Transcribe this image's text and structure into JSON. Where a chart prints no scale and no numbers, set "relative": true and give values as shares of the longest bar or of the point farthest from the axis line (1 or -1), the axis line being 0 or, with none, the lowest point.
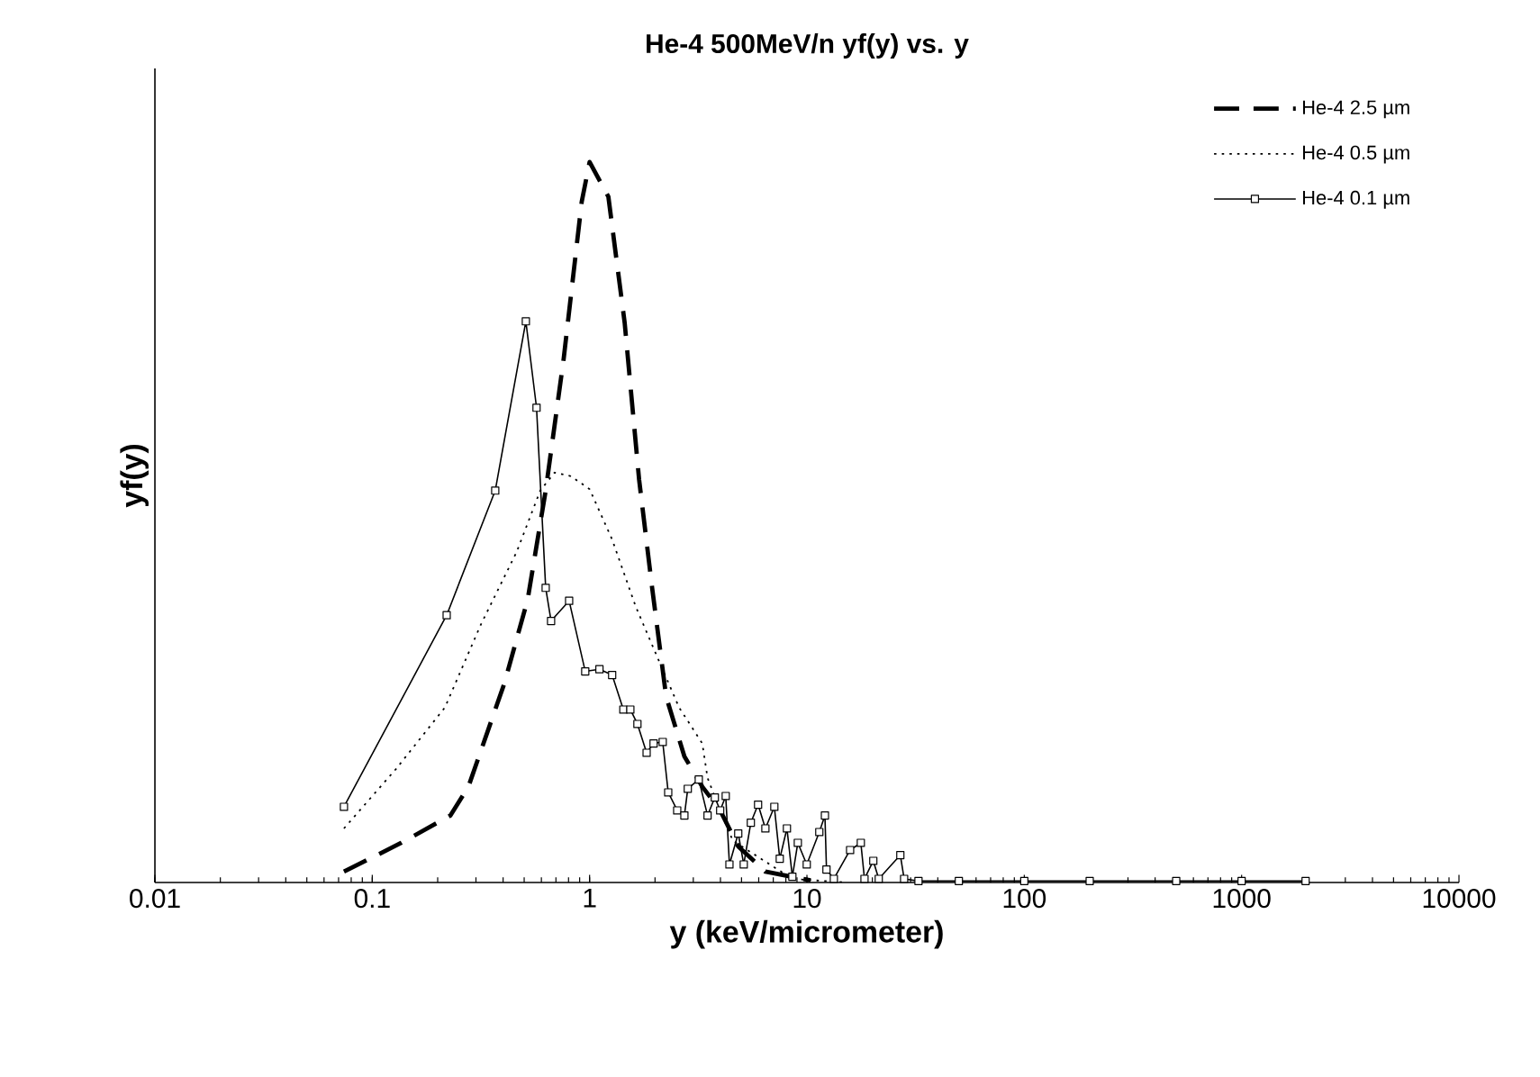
{
  "chart_data": {
    "type": "line",
    "title": "He-4 500MeV/n yf(y) vs. y",
    "xlabel": "y (keV/micrometer)",
    "ylabel": "yf(y)",
    "relative": true,
    "log": "x",
    "xlim": [
      0.01,
      10000
    ],
    "xticks": [
      0.01,
      0.1,
      1,
      10,
      100,
      1000,
      10000
    ],
    "legend": "top right",
    "grid": false,
    "series": [
      {
        "name": "He-4 2.5 µm",
        "color": "#000000",
        "line_style": "dashed",
        "marker": "none",
        "x": [
          0.0741,
          0.136,
          0.229,
          0.277,
          0.405,
          0.519,
          0.628,
          0.76,
          0.92,
          1.0,
          1.22,
          1.45,
          1.69,
          1.94,
          2.25,
          2.73,
          3.3,
          3.99,
          4.83,
          6.44,
          10.4
        ],
        "values": [
          0.015,
          0.055,
          0.093,
          0.133,
          0.276,
          0.393,
          0.544,
          0.727,
          0.945,
          1.0,
          0.952,
          0.777,
          0.559,
          0.409,
          0.258,
          0.175,
          0.133,
          0.1,
          0.05,
          0.015,
          0.003
        ]
      },
      {
        "name": "He-4 0.5 µm",
        "color": "#000000",
        "line_style": "dotted",
        "marker": "none",
        "x": [
          0.0741,
          0.129,
          0.216,
          0.316,
          0.462,
          0.593,
          0.69,
          0.82,
          1.0,
          1.27,
          1.63,
          2.13,
          2.58,
          3.3,
          3.49,
          3.99,
          4.56,
          8.57,
          15.2
        ],
        "values": [
          0.075,
          0.158,
          0.243,
          0.358,
          0.459,
          0.544,
          0.569,
          0.564,
          0.546,
          0.476,
          0.383,
          0.301,
          0.243,
          0.193,
          0.145,
          0.1,
          0.058,
          0.005,
          0.0
        ]
      },
      {
        "name": "He-4 0.1 µm",
        "color": "#000000",
        "line_style": "solid",
        "marker": "square",
        "x": [
          0.0741,
          0.22,
          0.368,
          0.509,
          0.57,
          0.628,
          0.665,
          0.805,
          0.955,
          1.11,
          1.27,
          1.43,
          1.54,
          1.66,
          1.83,
          1.97,
          2.17,
          2.3,
          2.53,
          2.73,
          2.83,
          3.18,
          3.49,
          3.77,
          3.99,
          4.23,
          4.4,
          4.83,
          5.12,
          5.52,
          5.96,
          6.44,
          7.08,
          7.5,
          8.09,
          8.57,
          9.08,
          9.98,
          11.4,
          12.1,
          12.3,
          13.3,
          15.8,
          17.7,
          18.4,
          20.2,
          21.4,
          26.9,
          28.0,
          32.6,
          50,
          100,
          200,
          500,
          1000,
          1970
        ],
        "values": [
          0.105,
          0.371,
          0.544,
          0.779,
          0.659,
          0.409,
          0.363,
          0.391,
          0.293,
          0.296,
          0.288,
          0.24,
          0.24,
          0.22,
          0.18,
          0.193,
          0.195,
          0.125,
          0.1,
          0.093,
          0.13,
          0.143,
          0.093,
          0.118,
          0.1,
          0.12,
          0.025,
          0.068,
          0.025,
          0.083,
          0.108,
          0.075,
          0.105,
          0.033,
          0.075,
          0.008,
          0.055,
          0.025,
          0.07,
          0.093,
          0.018,
          0.005,
          0.045,
          0.055,
          0.005,
          0.03,
          0.005,
          0.038,
          0.005,
          0.002,
          0.002,
          0.002,
          0.002,
          0.002,
          0.002,
          0.002
        ]
      }
    ]
  }
}
